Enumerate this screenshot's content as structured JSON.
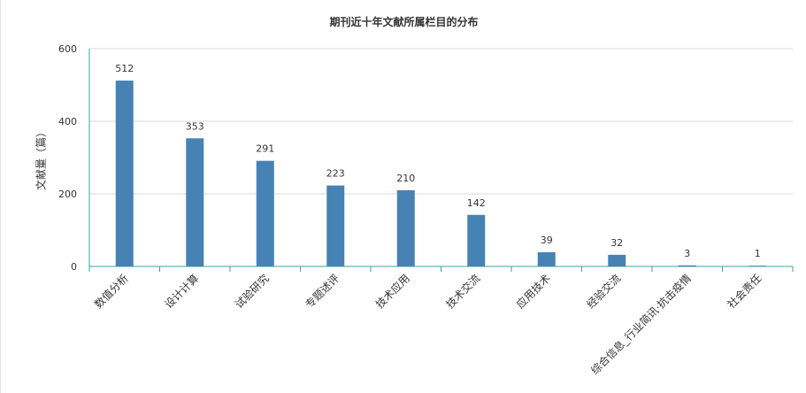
{
  "chart_data": {
    "type": "bar",
    "title": "期刊近十年文献所属栏目的分布",
    "xlabel": "",
    "ylabel": "文献量（篇）",
    "categories": [
      "数值分析",
      "设计计算",
      "试验研究",
      "专题述评",
      "技术应用",
      "技术交流",
      "应用技术",
      "经验交流",
      "综合信息_行业简讯·抗击疫情",
      "社会责任"
    ],
    "values": [
      512,
      353,
      291,
      223,
      210,
      142,
      39,
      32,
      3,
      1
    ],
    "ylim": [
      0,
      600
    ],
    "yticks": [
      0,
      200,
      400,
      600
    ],
    "grid": true,
    "legend": "none",
    "colors": {
      "bar": "#4682b4",
      "axis": "#3aa3a8",
      "grid": "#d9d9d9",
      "text": "#333333"
    }
  }
}
